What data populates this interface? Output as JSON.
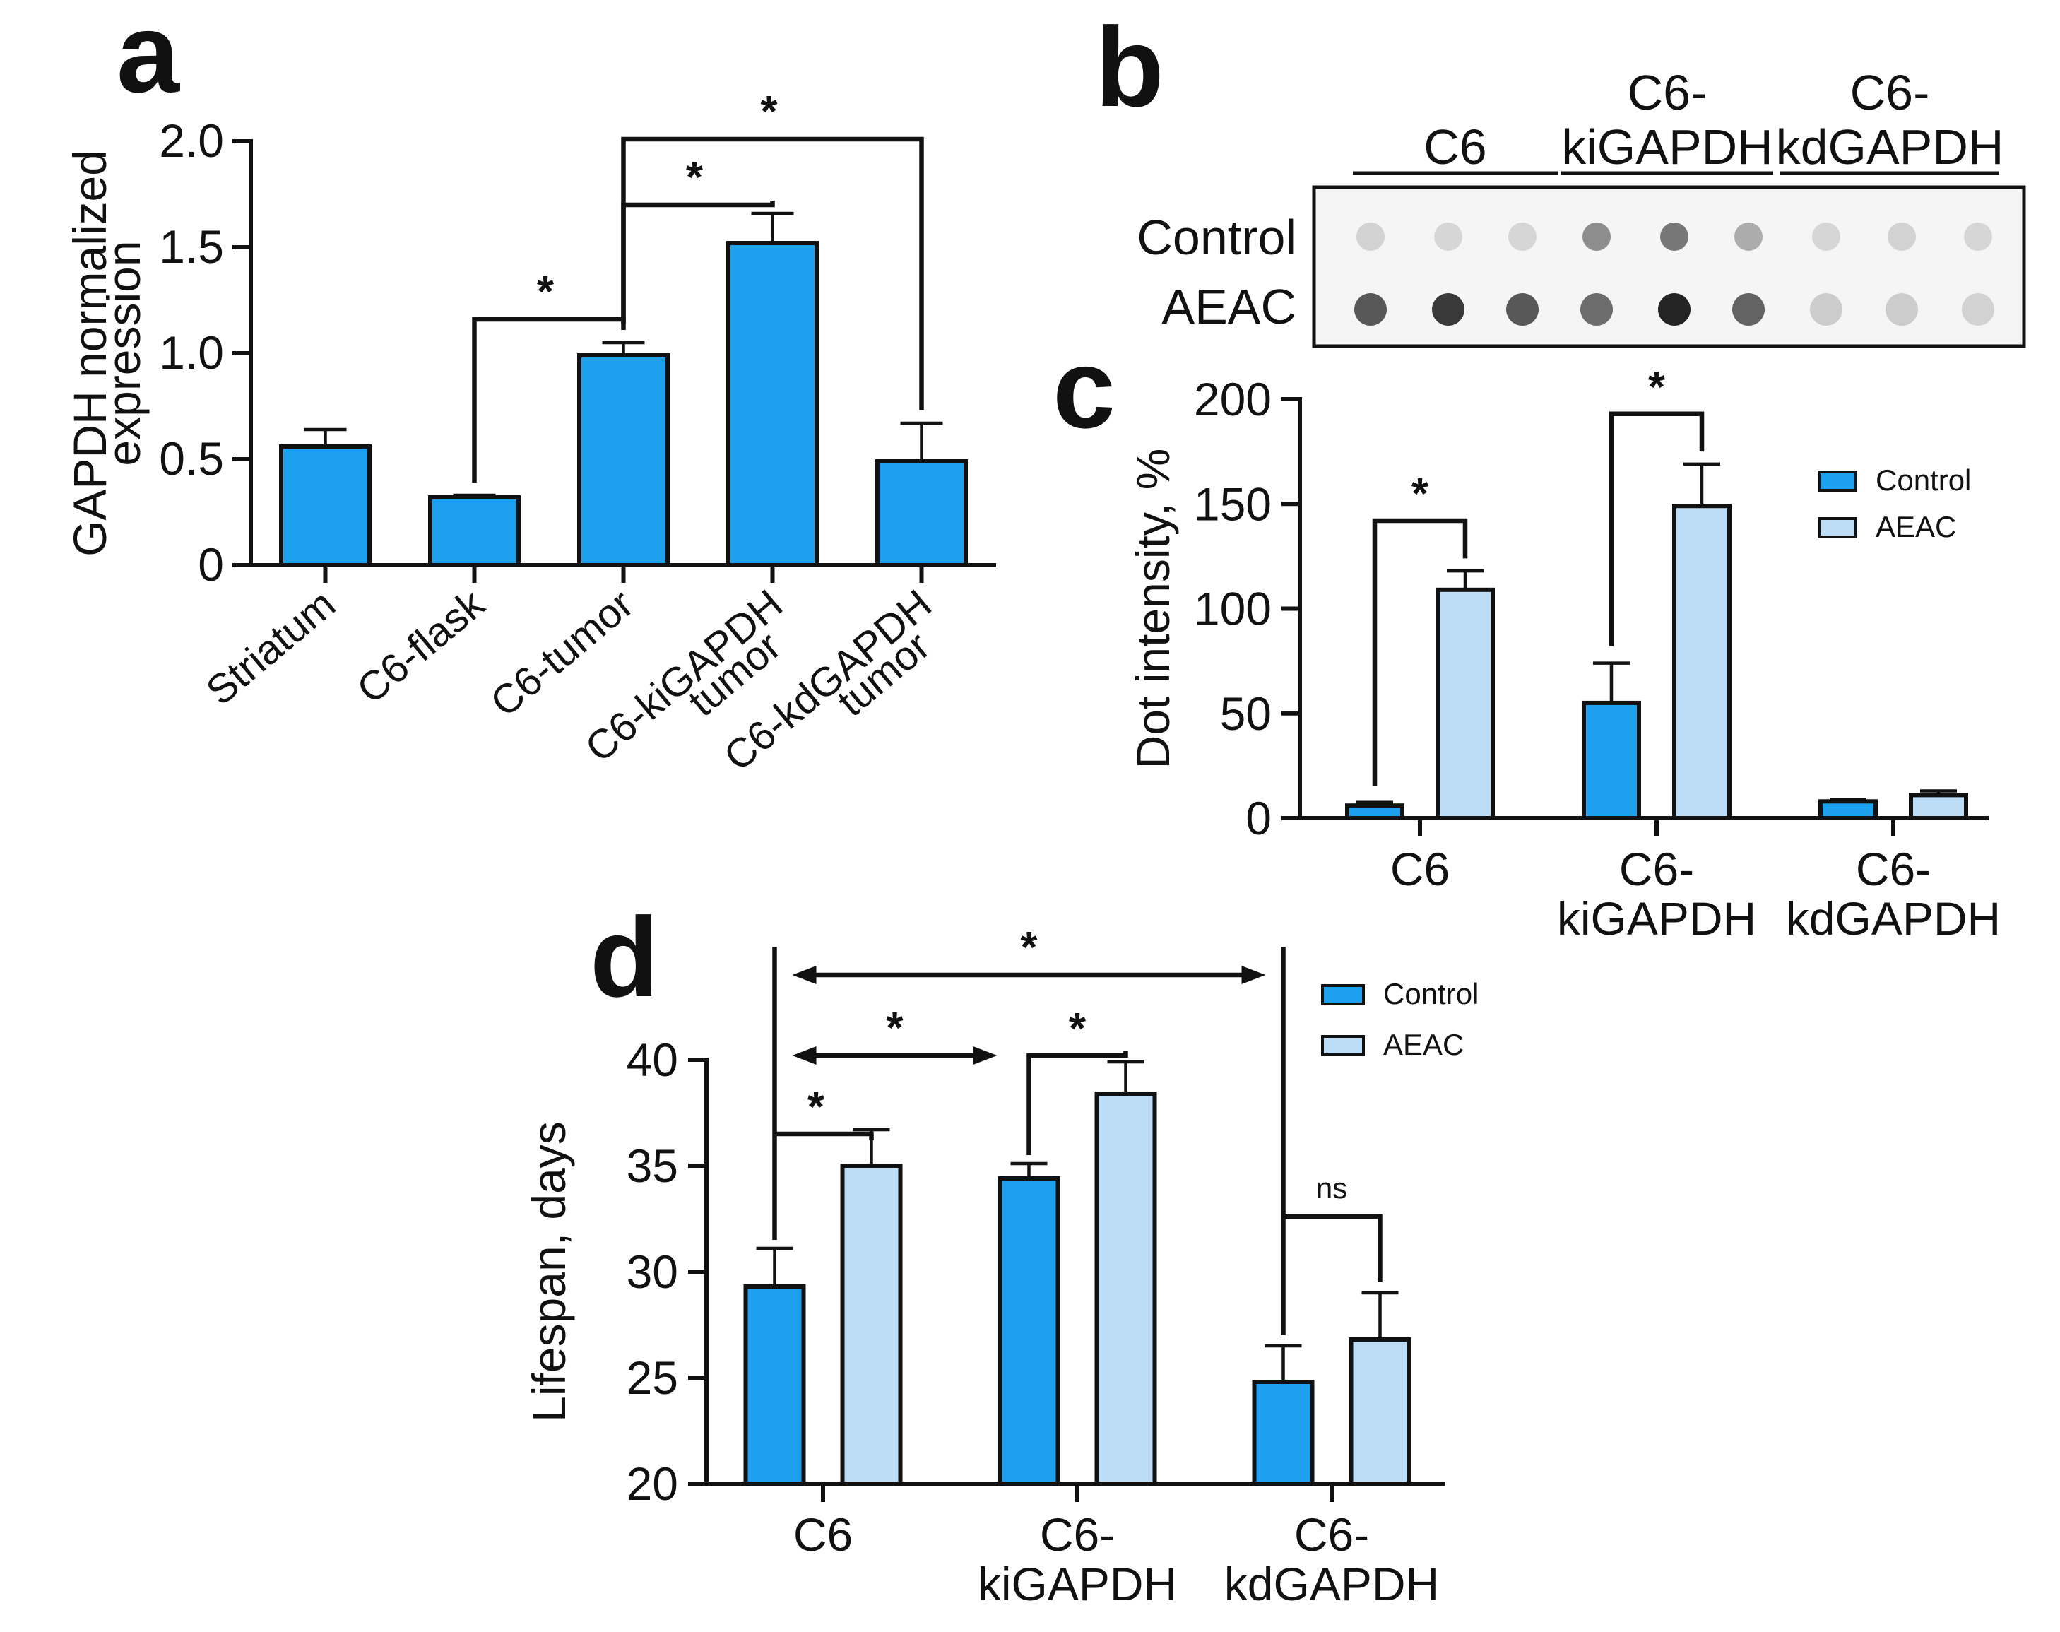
{
  "colors": {
    "control": "#1da1ee",
    "aeac": "#bddcf5",
    "axis": "#111111",
    "blot_bg": "#f5f5f5",
    "dot_dark": "#222222"
  },
  "panels": {
    "a": {
      "label": "a"
    },
    "b": {
      "label": "b",
      "groups": [
        {
          "line1": "",
          "line2": "C6"
        },
        {
          "line1": "C6-",
          "line2": "kiGAPDH"
        },
        {
          "line1": "C6-",
          "line2": "kdGAPDH"
        }
      ],
      "row_labels": [
        "Control",
        "AEAC"
      ],
      "dot_intensity_control": [
        0.12,
        0.1,
        0.1,
        0.45,
        0.55,
        0.3,
        0.1,
        0.12,
        0.1
      ],
      "dot_intensity_aeac": [
        0.7,
        0.85,
        0.7,
        0.6,
        0.95,
        0.65,
        0.15,
        0.15,
        0.12
      ]
    },
    "c": {
      "label": "c"
    },
    "d": {
      "label": "d"
    }
  },
  "chart_data": [
    {
      "id": "a",
      "type": "bar",
      "title": "",
      "xlabel": "",
      "ylabel_line1": "GAPDH normalized",
      "ylabel_line2": "expression",
      "ylim": [
        0,
        2.0
      ],
      "yticks": [
        0,
        0.5,
        1.0,
        1.5,
        2.0
      ],
      "ytick_labels": [
        "0",
        "0.5",
        "1.0",
        "1.5",
        "2.0"
      ],
      "categories": [
        {
          "line1": "Striatum",
          "line2": ""
        },
        {
          "line1": "C6-flask",
          "line2": ""
        },
        {
          "line1": "C6-tumor",
          "line2": ""
        },
        {
          "line1": "C6-kiGAPDH",
          "line2": "tumor"
        },
        {
          "line1": "C6-kdGAPDH",
          "line2": "tumor"
        }
      ],
      "values": [
        0.56,
        0.32,
        0.99,
        1.52,
        0.49
      ],
      "errors": [
        0.08,
        0.01,
        0.06,
        0.14,
        0.18
      ],
      "significance": [
        {
          "from": 1,
          "to": 2,
          "label": "*"
        },
        {
          "from": 2,
          "to": 3,
          "label": "*"
        },
        {
          "from": 2,
          "to": 4,
          "label": "*"
        }
      ]
    },
    {
      "id": "c",
      "type": "bar",
      "title": "",
      "xlabel": "",
      "ylabel": "Dot intensity, %",
      "ylim": [
        0,
        200
      ],
      "yticks": [
        0,
        50,
        100,
        150,
        200
      ],
      "ytick_labels": [
        "0",
        "50",
        "100",
        "150",
        "200"
      ],
      "categories": [
        {
          "line1": "C6",
          "line2": ""
        },
        {
          "line1": "C6-",
          "line2": "kiGAPDH"
        },
        {
          "line1": "C6-",
          "line2": "kdGAPDH"
        }
      ],
      "series": [
        {
          "name": "Control",
          "values": [
            6,
            55,
            8
          ],
          "errors": [
            1.5,
            19,
            1
          ]
        },
        {
          "name": "AEAC",
          "values": [
            109,
            149,
            11
          ],
          "errors": [
            9,
            20,
            2
          ]
        }
      ],
      "legend": "top-right",
      "significance": [
        {
          "group": 0,
          "label": "*"
        },
        {
          "group": 1,
          "label": "*"
        }
      ]
    },
    {
      "id": "d",
      "type": "bar",
      "title": "",
      "xlabel": "",
      "ylabel": "Lifespan, days",
      "ylim": [
        20,
        40
      ],
      "yticks": [
        20,
        25,
        30,
        35,
        40
      ],
      "ytick_labels": [
        "20",
        "25",
        "30",
        "35",
        "40"
      ],
      "categories": [
        {
          "line1": "C6",
          "line2": ""
        },
        {
          "line1": "C6-",
          "line2": "kiGAPDH"
        },
        {
          "line1": "C6-",
          "line2": "kdGAPDH"
        }
      ],
      "series": [
        {
          "name": "Control",
          "values": [
            29.3,
            34.4,
            24.8
          ],
          "errors": [
            1.8,
            0.7,
            1.7
          ]
        },
        {
          "name": "AEAC",
          "values": [
            35.0,
            38.4,
            26.8
          ],
          "errors": [
            1.7,
            1.5,
            2.2
          ]
        }
      ],
      "legend": "top-right",
      "significance": [
        {
          "kind": "pair",
          "group": 0,
          "label": "*"
        },
        {
          "kind": "pair",
          "group": 1,
          "label": "*"
        },
        {
          "kind": "pair",
          "group": 2,
          "label": "ns"
        },
        {
          "kind": "arrow",
          "from_group": 0,
          "to_group": 1,
          "label": "*"
        },
        {
          "kind": "arrow",
          "from_group": 0,
          "to_group": 2,
          "label": "*"
        }
      ]
    }
  ]
}
